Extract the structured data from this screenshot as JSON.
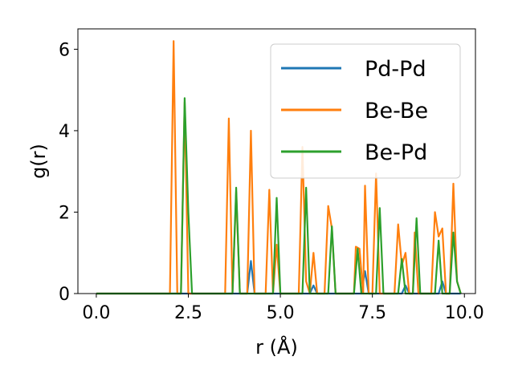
{
  "chart_data": {
    "type": "line",
    "title": "",
    "xlabel": "r (Å)",
    "ylabel": "g(r)",
    "xlim": [
      -0.5,
      10.3
    ],
    "ylim": [
      0,
      6.5
    ],
    "xticks": [
      0.0,
      2.5,
      5.0,
      7.5,
      10.0
    ],
    "xtick_labels": [
      "0.0",
      "2.5",
      "5.0",
      "7.5",
      "10.0"
    ],
    "yticks": [
      0,
      2,
      4,
      6
    ],
    "ytick_labels": [
      "0",
      "2",
      "4",
      "6"
    ],
    "grid": false,
    "legend_position": "top-right",
    "series": [
      {
        "name": "Pd-Pd",
        "color": "#1f77b4",
        "points": [
          [
            0,
            0
          ],
          [
            4.1,
            0
          ],
          [
            4.2,
            0.8
          ],
          [
            4.3,
            0
          ],
          [
            5.8,
            0
          ],
          [
            5.9,
            0.2
          ],
          [
            6.0,
            0
          ],
          [
            7.2,
            0
          ],
          [
            7.3,
            0.55
          ],
          [
            7.4,
            0
          ],
          [
            8.3,
            0
          ],
          [
            8.4,
            0.2
          ],
          [
            8.5,
            0
          ],
          [
            9.3,
            0
          ],
          [
            9.4,
            0.3
          ],
          [
            9.5,
            0
          ],
          [
            9.9,
            0
          ]
        ]
      },
      {
        "name": "Be-Be",
        "color": "#ff7f0e",
        "points": [
          [
            0,
            0
          ],
          [
            2.0,
            0
          ],
          [
            2.1,
            6.2
          ],
          [
            2.2,
            0
          ],
          [
            2.3,
            0
          ],
          [
            2.4,
            4.7
          ],
          [
            2.5,
            0
          ],
          [
            3.5,
            0
          ],
          [
            3.6,
            4.3
          ],
          [
            3.7,
            0
          ],
          [
            3.8,
            2.5
          ],
          [
            3.9,
            0
          ],
          [
            4.1,
            0
          ],
          [
            4.2,
            4.0
          ],
          [
            4.3,
            0
          ],
          [
            4.6,
            0
          ],
          [
            4.7,
            2.55
          ],
          [
            4.8,
            0
          ],
          [
            4.9,
            1.2
          ],
          [
            5.0,
            0
          ],
          [
            5.5,
            0
          ],
          [
            5.6,
            3.6
          ],
          [
            5.7,
            0.3
          ],
          [
            5.8,
            0
          ],
          [
            5.9,
            1.0
          ],
          [
            6.0,
            0
          ],
          [
            6.2,
            0
          ],
          [
            6.3,
            2.15
          ],
          [
            6.4,
            1.6
          ],
          [
            6.5,
            0
          ],
          [
            7.0,
            0
          ],
          [
            7.05,
            1.15
          ],
          [
            7.15,
            1.1
          ],
          [
            7.25,
            0
          ],
          [
            7.3,
            2.65
          ],
          [
            7.4,
            0
          ],
          [
            7.5,
            0
          ],
          [
            7.6,
            2.95
          ],
          [
            7.7,
            0
          ],
          [
            8.1,
            0
          ],
          [
            8.2,
            1.7
          ],
          [
            8.3,
            0.7
          ],
          [
            8.4,
            1.0
          ],
          [
            8.5,
            0
          ],
          [
            8.6,
            0
          ],
          [
            8.65,
            1.5
          ],
          [
            8.75,
            0
          ],
          [
            8.9,
            0
          ],
          [
            9.1,
            0
          ],
          [
            9.2,
            2.0
          ],
          [
            9.3,
            1.4
          ],
          [
            9.4,
            1.6
          ],
          [
            9.5,
            0
          ],
          [
            9.6,
            0
          ],
          [
            9.7,
            2.7
          ],
          [
            9.8,
            0.3
          ],
          [
            9.9,
            0
          ]
        ]
      },
      {
        "name": "Be-Pd",
        "color": "#2ca02c",
        "points": [
          [
            0,
            0
          ],
          [
            2.3,
            0
          ],
          [
            2.4,
            4.8
          ],
          [
            2.5,
            2.0
          ],
          [
            2.6,
            0
          ],
          [
            3.7,
            0
          ],
          [
            3.8,
            2.6
          ],
          [
            3.9,
            0
          ],
          [
            4.8,
            0
          ],
          [
            4.9,
            2.35
          ],
          [
            5.0,
            0
          ],
          [
            5.6,
            0
          ],
          [
            5.7,
            2.6
          ],
          [
            5.8,
            0
          ],
          [
            6.3,
            0
          ],
          [
            6.4,
            1.65
          ],
          [
            6.5,
            0
          ],
          [
            7.0,
            0
          ],
          [
            7.1,
            1.1
          ],
          [
            7.2,
            0
          ],
          [
            7.6,
            0
          ],
          [
            7.7,
            2.1
          ],
          [
            7.8,
            0
          ],
          [
            8.2,
            0
          ],
          [
            8.3,
            0.85
          ],
          [
            8.4,
            0
          ],
          [
            8.6,
            0
          ],
          [
            8.7,
            1.85
          ],
          [
            8.8,
            0
          ],
          [
            9.2,
            0
          ],
          [
            9.3,
            1.3
          ],
          [
            9.4,
            0
          ],
          [
            9.6,
            0
          ],
          [
            9.7,
            1.5
          ],
          [
            9.8,
            0.3
          ],
          [
            9.9,
            0
          ]
        ]
      }
    ]
  }
}
